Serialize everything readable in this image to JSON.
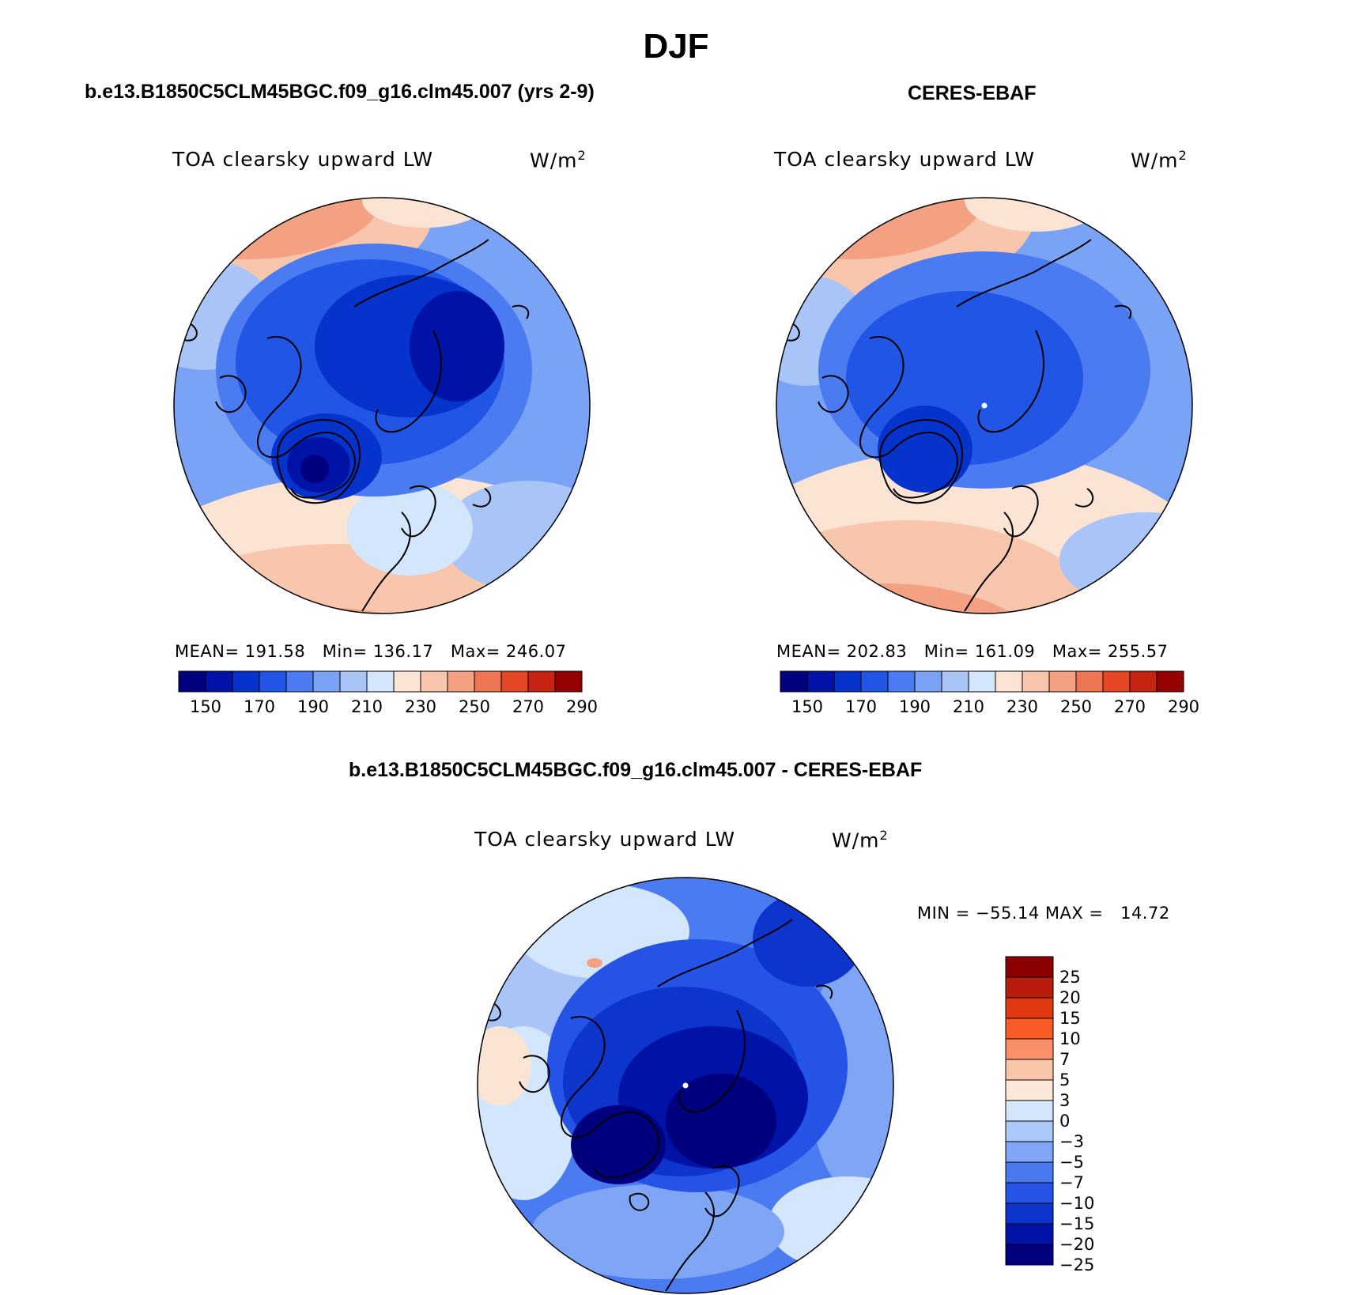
{
  "title": "DJF",
  "panels": {
    "model": {
      "header": "b.e13.B1850C5CLM45BGC.f09_g16.clm45.007 (yrs 2-9)",
      "variable": "TOA clearsky upward LW",
      "units": "W/m",
      "units_sup": "2",
      "stats": {
        "mean_label": "MEAN=",
        "mean": "191.58",
        "min_label": "Min=",
        "min": "136.17",
        "max_label": "Max=",
        "max": "246.07"
      }
    },
    "obs": {
      "header": "CERES-EBAF",
      "variable": "TOA clearsky upward LW",
      "units": "W/m",
      "units_sup": "2",
      "stats": {
        "mean_label": "MEAN=",
        "mean": "202.83",
        "min_label": "Min=",
        "min": "161.09",
        "max_label": "Max=",
        "max": "255.57"
      }
    },
    "diff": {
      "header": "b.e13.B1850C5CLM45BGC.f09_g16.clm45.007 - CERES-EBAF",
      "variable": "TOA clearsky upward LW",
      "units": "W/m",
      "units_sup": "2",
      "minmax": {
        "min_label": "MIN =",
        "min": "−55.14",
        "max_label": "MAX =",
        "max": "14.72"
      }
    }
  },
  "colorbars": {
    "abs": {
      "colors": [
        "#00007f",
        "#0013a6",
        "#0633cc",
        "#2155e6",
        "#4a7bf0",
        "#7aa2f5",
        "#a9c5f8",
        "#d4e6fb",
        "#fbe4d3",
        "#f8c6ac",
        "#f3a182",
        "#ee7551",
        "#e54623",
        "#c62410",
        "#950000"
      ],
      "tick_labels": [
        "150",
        "170",
        "190",
        "210",
        "230",
        "250",
        "270",
        "290"
      ]
    },
    "diff": {
      "colors": [
        "#8b0000",
        "#b81c0b",
        "#e03910",
        "#f85b26",
        "#f9906a",
        "#fac6aa",
        "#fce8d8",
        "#d4e6fb",
        "#aac8f8",
        "#7ea6f4",
        "#4a79ef",
        "#2453e6",
        "#0d35cc",
        "#0013a6",
        "#00007f"
      ],
      "tick_labels": [
        "25",
        "20",
        "15",
        "10",
        "7",
        "5",
        "3",
        "0",
        "−3",
        "−5",
        "−7",
        "−10",
        "−15",
        "−20",
        "−25"
      ]
    }
  }
}
